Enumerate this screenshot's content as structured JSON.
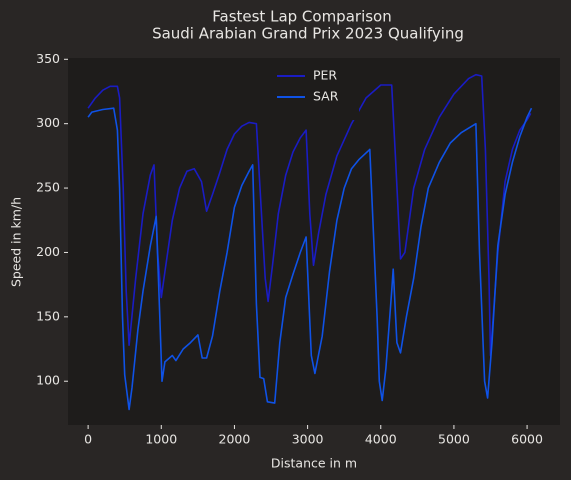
{
  "chart_data": {
    "type": "line",
    "title": "Fastest Lap Comparison",
    "subtitle": "Saudi Arabian Grand Prix 2023 Qualifying",
    "xlabel": "Distance in m",
    "ylabel": "Speed in km/h",
    "xlim": [
      -275,
      6450
    ],
    "ylim": [
      66,
      351
    ],
    "xticks": [
      0,
      1000,
      2000,
      3000,
      4000,
      5000,
      6000
    ],
    "yticks": [
      100,
      150,
      200,
      250,
      300,
      350
    ],
    "legend": "upper center",
    "grid": false,
    "series": [
      {
        "name": "PER",
        "color": "#1a1cc4",
        "x": [
          0,
          100,
          200,
          300,
          400,
          430,
          480,
          520,
          560,
          650,
          750,
          850,
          900,
          950,
          1000,
          1050,
          1150,
          1250,
          1350,
          1450,
          1550,
          1620,
          1700,
          1800,
          1900,
          2000,
          2100,
          2200,
          2300,
          2350,
          2420,
          2460,
          2520,
          2600,
          2700,
          2800,
          2900,
          2980,
          3030,
          3080,
          3150,
          3250,
          3400,
          3600,
          3800,
          4000,
          4150,
          4200,
          4270,
          4330,
          4450,
          4600,
          4800,
          5000,
          5200,
          5300,
          5380,
          5430,
          5480,
          5500,
          5600,
          5700,
          5800,
          5900,
          6000,
          6050
        ],
        "values": [
          312,
          320,
          326,
          329,
          329,
          320,
          250,
          170,
          128,
          180,
          230,
          260,
          268,
          200,
          165,
          185,
          225,
          250,
          263,
          265,
          255,
          232,
          245,
          262,
          280,
          292,
          298,
          301,
          300,
          250,
          180,
          162,
          190,
          230,
          260,
          278,
          289,
          295,
          230,
          190,
          215,
          245,
          275,
          300,
          320,
          330,
          330,
          275,
          195,
          200,
          250,
          280,
          305,
          323,
          335,
          338,
          337,
          280,
          180,
          120,
          200,
          255,
          280,
          295,
          303,
          308
        ]
      },
      {
        "name": "SAR",
        "color": "#0f52e6",
        "x": [
          0,
          50,
          200,
          350,
          400,
          430,
          470,
          500,
          560,
          600,
          680,
          750,
          850,
          930,
          980,
          1010,
          1050,
          1150,
          1200,
          1300,
          1400,
          1500,
          1560,
          1620,
          1700,
          1800,
          1900,
          2000,
          2100,
          2200,
          2250,
          2300,
          2350,
          2400,
          2450,
          2550,
          2620,
          2700,
          2800,
          2900,
          2980,
          3050,
          3100,
          3200,
          3300,
          3400,
          3500,
          3600,
          3700,
          3850,
          3950,
          3980,
          4020,
          4070,
          4150,
          4170,
          4220,
          4270,
          4350,
          4450,
          4550,
          4650,
          4800,
          4950,
          5100,
          5300,
          5350,
          5420,
          5460,
          5520,
          5600,
          5700,
          5800,
          5900,
          6000,
          6060
        ],
        "values": [
          305,
          309,
          311,
          312,
          295,
          250,
          150,
          105,
          78,
          95,
          140,
          170,
          205,
          228,
          150,
          100,
          115,
          120,
          116,
          125,
          130,
          136,
          118,
          118,
          135,
          170,
          200,
          235,
          252,
          263,
          268,
          160,
          103,
          102,
          84,
          83,
          130,
          165,
          183,
          200,
          212,
          120,
          106,
          135,
          185,
          225,
          250,
          265,
          272,
          280,
          150,
          100,
          85,
          110,
          170,
          187,
          130,
          122,
          150,
          180,
          220,
          250,
          270,
          285,
          293,
          300,
          200,
          100,
          87,
          130,
          205,
          245,
          270,
          290,
          305,
          312
        ]
      }
    ]
  }
}
